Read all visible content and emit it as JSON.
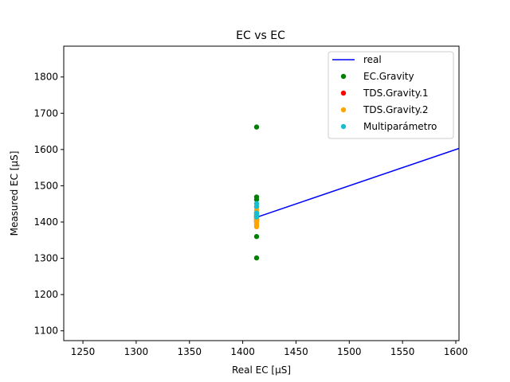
{
  "chart_data": {
    "type": "scatter",
    "title": "EC vs EC",
    "xlabel": "Real EC [μS]",
    "ylabel": "Measured EC [μS]",
    "xlim": [
      1232,
      1603
    ],
    "ylim": [
      1073,
      1885
    ],
    "xticks": [
      1250,
      1300,
      1350,
      1400,
      1450,
      1500,
      1550,
      1600
    ],
    "yticks": [
      1100,
      1200,
      1300,
      1400,
      1500,
      1600,
      1700,
      1800
    ],
    "grid": false,
    "legend_position": "top-right",
    "line": {
      "name": "real",
      "color": "#0000ff",
      "x": [
        1413,
        1603
      ],
      "y": [
        1413,
        1603
      ]
    },
    "series": [
      {
        "name": "EC.Gravity",
        "color": "#008000",
        "x": [
          1413,
          1413,
          1413,
          1413,
          1413,
          1413,
          1413,
          1413,
          1413,
          1413
        ],
        "y": [
          1662,
          1469,
          1462,
          1425,
          1420,
          1415,
          1410,
          1405,
          1360,
          1301
        ]
      },
      {
        "name": "TDS.Gravity.1",
        "color": "#ff0000",
        "x": [
          1413,
          1413,
          1413
        ],
        "y": [
          1415,
          1408,
          1402
        ]
      },
      {
        "name": "TDS.Gravity.2",
        "color": "#ffa500",
        "x": [
          1413,
          1413,
          1413,
          1413,
          1413,
          1413,
          1413,
          1413
        ],
        "y": [
          1440,
          1432,
          1418,
          1410,
          1404,
          1398,
          1392,
          1387
        ]
      },
      {
        "name": "Multiparámetro",
        "color": "#17becf",
        "x": [
          1413,
          1413,
          1413,
          1413,
          1413
        ],
        "y": [
          1451,
          1443,
          1425,
          1420,
          1414
        ]
      }
    ]
  }
}
